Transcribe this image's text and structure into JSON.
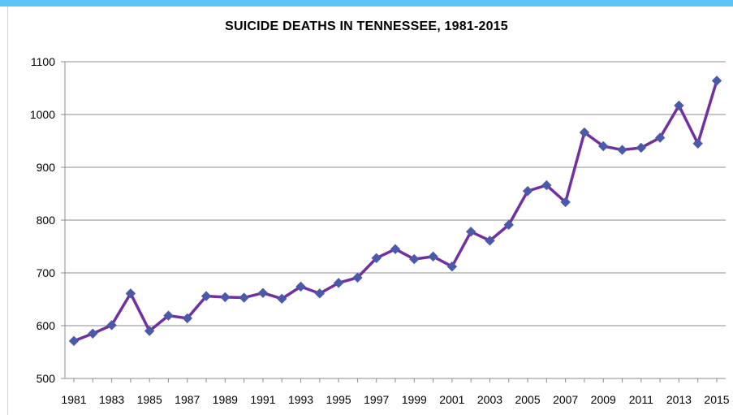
{
  "chart_data": {
    "type": "line",
    "title": "SUICIDE DEATHS IN TENNESSEE, 1981-2015",
    "xlabel": "",
    "ylabel": "",
    "x": [
      1981,
      1982,
      1983,
      1984,
      1985,
      1986,
      1987,
      1988,
      1989,
      1990,
      1991,
      1992,
      1993,
      1994,
      1995,
      1996,
      1997,
      1998,
      1999,
      2000,
      2001,
      2002,
      2003,
      2004,
      2005,
      2006,
      2007,
      2008,
      2009,
      2010,
      2011,
      2012,
      2013,
      2014,
      2015
    ],
    "x_tick_labels": [
      "1981",
      "1983",
      "1985",
      "1987",
      "1989",
      "1991",
      "1993",
      "1995",
      "1997",
      "1999",
      "2001",
      "2003",
      "2005",
      "2007",
      "2009",
      "2011",
      "2013",
      "2015"
    ],
    "series": [
      {
        "values": [
          571,
          585,
          601,
          661,
          590,
          619,
          614,
          656,
          654,
          653,
          662,
          651,
          674,
          661,
          681,
          691,
          728,
          745,
          726,
          731,
          712,
          778,
          761,
          791,
          855,
          866,
          834,
          966,
          940,
          933,
          937,
          956,
          1017,
          945,
          1064
        ],
        "color": "#7030a0",
        "marker_color": "#4a5aa8"
      }
    ],
    "ylim": [
      500,
      1100
    ],
    "y_ticks": [
      500,
      600,
      700,
      800,
      900,
      1000,
      1100
    ],
    "grid": true,
    "legend": "none"
  }
}
